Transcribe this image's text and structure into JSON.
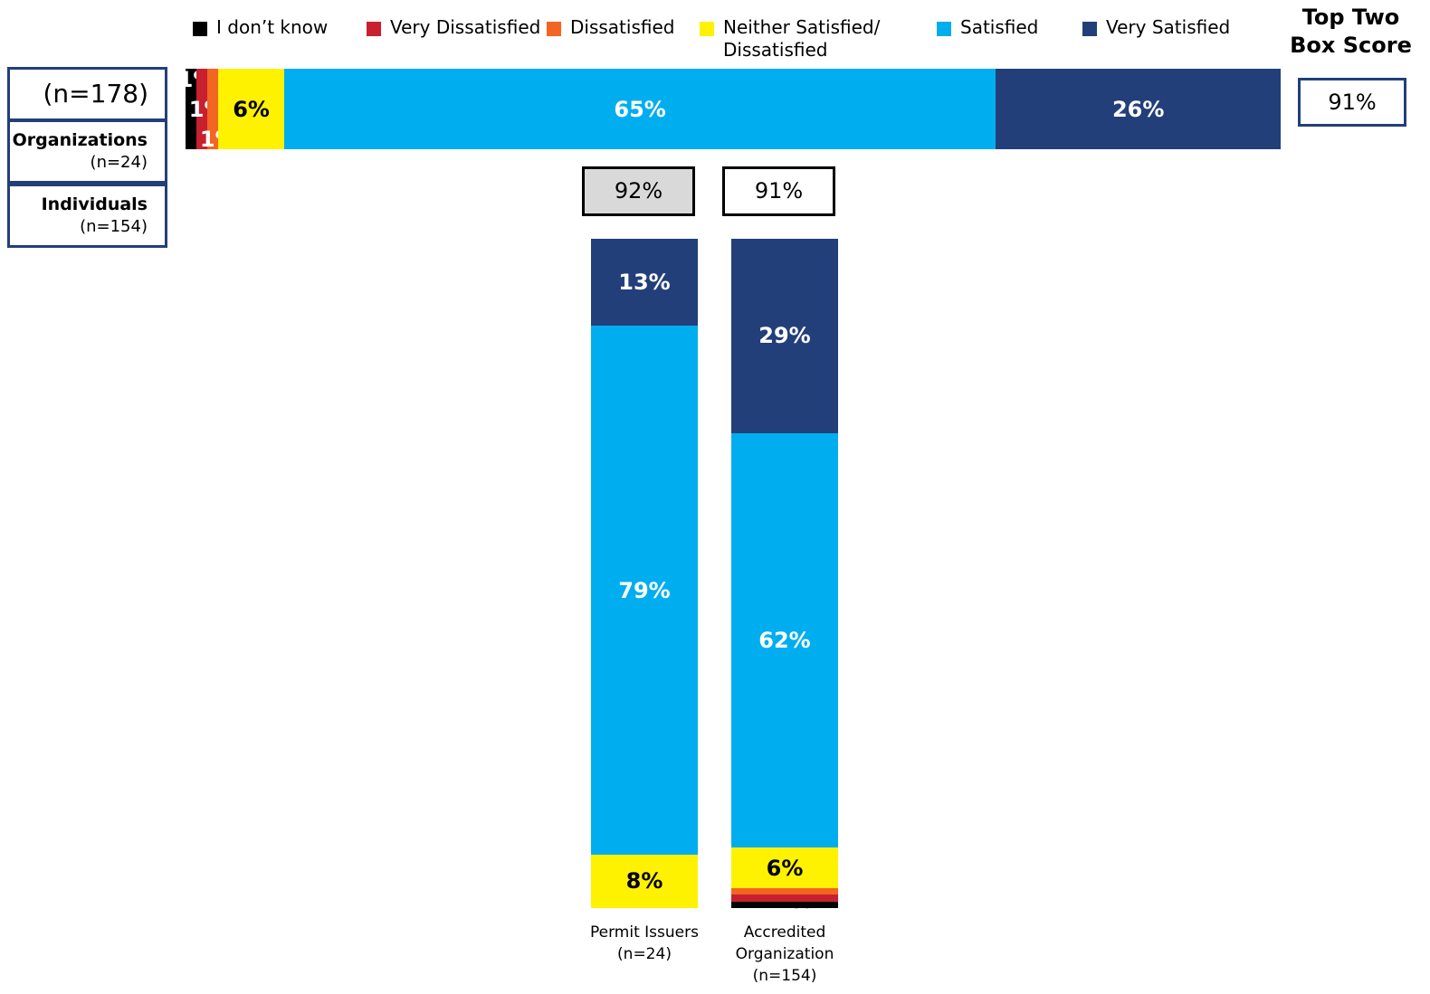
{
  "chart_data": [
    {
      "type": "hbar_stacked",
      "categories": [
        "(n=178)"
      ],
      "xlim": [
        0,
        100
      ],
      "top_two_box_title": "Top Two\nBox Score",
      "top_two_box": [
        91
      ],
      "top_two_box_labels": [
        "91%"
      ],
      "side_labels": [
        {
          "name": "Organizations",
          "n": "(n=24)"
        },
        {
          "name": "Individuals",
          "n": "(n=154)"
        }
      ],
      "series": [
        {
          "name": "I don’t know",
          "color": "#000000",
          "values": [
            1
          ],
          "value_labels": [
            "1%"
          ]
        },
        {
          "name": "Very Dissatisfied",
          "color": "#c8202f",
          "values": [
            1
          ],
          "value_labels": [
            "1%"
          ]
        },
        {
          "name": "Dissatisfied",
          "color": "#f26522",
          "values": [
            1
          ],
          "value_labels": [
            "1%"
          ]
        },
        {
          "name": "Neither Satisfied/\nDissatisfied",
          "color": "#fff200",
          "values": [
            6
          ],
          "value_labels": [
            "6%"
          ]
        },
        {
          "name": "Satisfied",
          "color": "#00aeef",
          "values": [
            65
          ],
          "value_labels": [
            "65%"
          ]
        },
        {
          "name": "Very Satisfied",
          "color": "#223f7a",
          "values": [
            26
          ],
          "value_labels": [
            "26%"
          ]
        }
      ]
    },
    {
      "type": "vbar_stacked",
      "categories": [
        "Permit Issuers\n(n=24)",
        "Accredited\nOrganization\n(n=154)"
      ],
      "ylim": [
        0,
        100
      ],
      "top_two_box": [
        92,
        91
      ],
      "top_two_box_labels": [
        "92%",
        "91%"
      ],
      "series": [
        {
          "name": "I don’t know",
          "color": "#000000",
          "values": [
            0,
            1
          ],
          "value_labels": [
            "0%",
            "1%"
          ]
        },
        {
          "name": "Very Dissatisfied",
          "color": "#c8202f",
          "values": [
            0,
            1
          ],
          "value_labels": [
            "0%",
            "1%"
          ]
        },
        {
          "name": "Dissatisfied",
          "color": "#f26522",
          "values": [
            0,
            1
          ],
          "value_labels": [
            "0%",
            "1%"
          ]
        },
        {
          "name": "Neither Satisfied/\nDissatisfied",
          "color": "#fff200",
          "values": [
            8,
            6
          ],
          "value_labels": [
            "8%",
            "6%"
          ]
        },
        {
          "name": "Satisfied",
          "color": "#00aeef",
          "values": [
            79,
            62
          ],
          "value_labels": [
            "79%",
            "62%"
          ]
        },
        {
          "name": "Very Satisfied",
          "color": "#223f7a",
          "values": [
            13,
            29
          ],
          "value_labels": [
            "13%",
            "29%"
          ]
        }
      ]
    }
  ]
}
